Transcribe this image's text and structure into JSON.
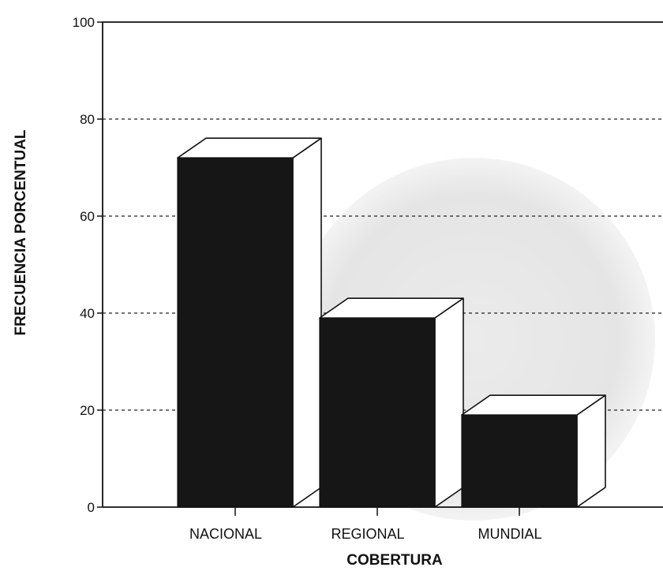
{
  "chart_data": {
    "type": "bar",
    "categories": [
      "NACIONAL",
      "REGIONAL",
      "MUNDIAL"
    ],
    "values": [
      72,
      39,
      19
    ],
    "title": "",
    "xlabel": "COBERTURA",
    "ylabel": "FRECUENCIA PORCENTUAL",
    "ylim": [
      0,
      100
    ],
    "yticks": [
      "0",
      "20",
      "40",
      "60",
      "80",
      "100"
    ],
    "grid": true,
    "bar_style": "3d",
    "colors": {
      "bar_front": "#161616",
      "bar_side": "#ffffff",
      "axis": "#111111",
      "grid": "#222222",
      "watermark": "#e4e4e4"
    }
  }
}
